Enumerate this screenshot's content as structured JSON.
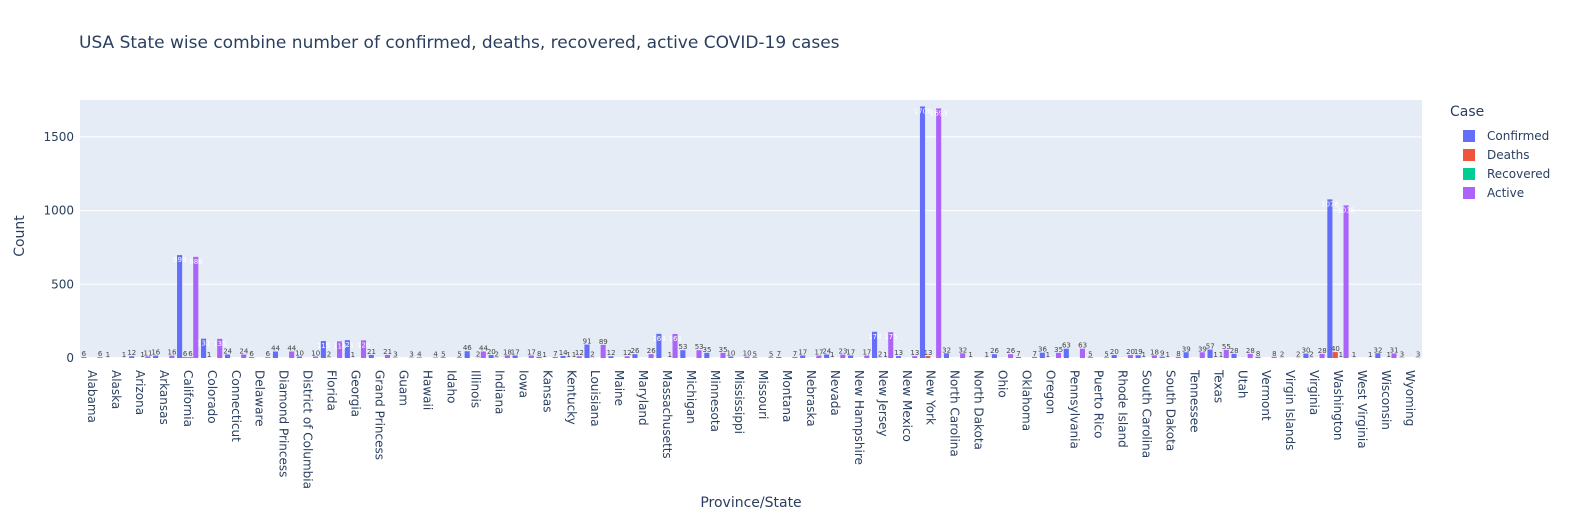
{
  "chart_data": {
    "type": "bar",
    "title": "USA State wise combine number of confirmed, deaths, recovered, active COVID-19 cases",
    "xlabel": "Province/State",
    "ylabel": "Count",
    "ylim": [
      0,
      1750
    ],
    "yticks": [
      0,
      500,
      1000,
      1500
    ],
    "legend_title": "Case",
    "legend_position": "right",
    "grid": true,
    "categories": [
      "Alabama",
      "Alaska",
      "Arizona",
      "Arkansas",
      "California",
      "Colorado",
      "Connecticut",
      "Delaware",
      "Diamond Princess",
      "District of Columbia",
      "Florida",
      "Georgia",
      "Grand Princess",
      "Guam",
      "Hawaii",
      "Idaho",
      "Illinois",
      "Indiana",
      "Iowa",
      "Kansas",
      "Kentucky",
      "Louisiana",
      "Maine",
      "Maryland",
      "Massachusetts",
      "Michigan",
      "Minnesota",
      "Mississippi",
      "Missouri",
      "Montana",
      "Nebraska",
      "Nevada",
      "New Hampshire",
      "New Jersey",
      "New Mexico",
      "New York",
      "North Carolina",
      "North Dakota",
      "Ohio",
      "Oklahoma",
      "Oregon",
      "Pennsylvania",
      "Puerto Rico",
      "Rhode Island",
      "South Carolina",
      "South Dakota",
      "Tennessee",
      "Texas",
      "Utah",
      "Vermont",
      "Virgin Islands",
      "Virginia",
      "Washington",
      "West Virginia",
      "Wisconsin",
      "Wyoming"
    ],
    "series": [
      {
        "name": "Confirmed",
        "color": "#636efa",
        "values": [
          6,
          1,
          12,
          16,
          698,
          131,
          24,
          6,
          44,
          10,
          115,
          121,
          21,
          3,
          4,
          5,
          46,
          20,
          17,
          8,
          14,
          91,
          12,
          26,
          164,
          53,
          35,
          10,
          5,
          7,
          17,
          24,
          17,
          178,
          13,
          1706,
          32,
          1,
          26,
          7,
          36,
          63,
          5,
          20,
          19,
          9,
          39,
          57,
          28,
          8,
          2,
          30,
          1076,
          1,
          32,
          3
        ]
      },
      {
        "name": "Deaths",
        "color": "#EF553B",
        "values": [
          0,
          0,
          0,
          0,
          6,
          1,
          0,
          0,
          0,
          0,
          2,
          1,
          0,
          0,
          0,
          0,
          0,
          2,
          0,
          1,
          1,
          2,
          0,
          0,
          0,
          0,
          0,
          0,
          0,
          0,
          0,
          1,
          0,
          2,
          0,
          13,
          0,
          0,
          0,
          0,
          1,
          0,
          0,
          0,
          1,
          1,
          0,
          1,
          0,
          0,
          0,
          2,
          40,
          0,
          0,
          0
        ]
      },
      {
        "name": "Recovered",
        "color": "#00cc96",
        "values": [
          0,
          0,
          1,
          0,
          6,
          0,
          0,
          0,
          0,
          0,
          0,
          0,
          0,
          0,
          0,
          0,
          2,
          0,
          0,
          0,
          1,
          0,
          0,
          0,
          1,
          0,
          0,
          0,
          0,
          0,
          0,
          0,
          0,
          1,
          0,
          0,
          0,
          0,
          0,
          0,
          0,
          0,
          0,
          0,
          0,
          0,
          0,
          1,
          0,
          0,
          0,
          0,
          1,
          0,
          1,
          0
        ]
      },
      {
        "name": "Active",
        "color": "#ab63fa",
        "values": [
          6,
          1,
          11,
          16,
          686,
          130,
          24,
          6,
          44,
          10,
          113,
          120,
          21,
          3,
          4,
          5,
          44,
          18,
          17,
          7,
          12,
          89,
          12,
          26,
          163,
          53,
          35,
          10,
          5,
          7,
          17,
          23,
          17,
          175,
          13,
          1693,
          32,
          1,
          26,
          7,
          35,
          63,
          5,
          20,
          18,
          8,
          39,
          55,
          28,
          8,
          2,
          28,
          1035,
          1,
          31,
          3
        ]
      }
    ]
  }
}
